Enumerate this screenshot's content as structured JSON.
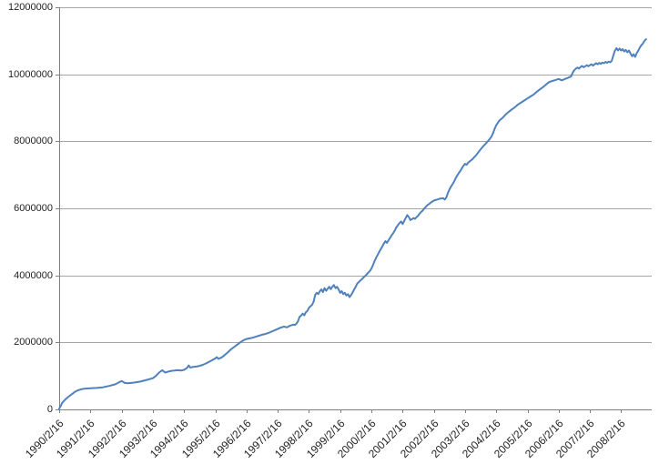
{
  "chart_data": {
    "type": "line",
    "title": "",
    "xlabel": "",
    "ylabel": "",
    "grid": "horizontal",
    "legend": "none",
    "colors": {
      "line": "#4F81BD",
      "gridline": "#A6A6A6",
      "axis": "#808080",
      "tick_label": "#1F1F1F",
      "background": "#FFFFFF"
    },
    "y_axis": {
      "min": 0,
      "max": 12000000,
      "tick_interval": 2000000,
      "tick_labels": [
        "0",
        "2000000",
        "4000000",
        "6000000",
        "8000000",
        "10000000",
        "12000000"
      ]
    },
    "x_axis": {
      "unit": "date",
      "tick_labels": [
        "1990/2/16",
        "1991/2/16",
        "1992/2/16",
        "1993/2/16",
        "1994/2/16",
        "1995/2/16",
        "1996/2/16",
        "1997/2/16",
        "1998/2/16",
        "1999/2/16",
        "2000/2/16",
        "2001/2/16",
        "2002/2/16",
        "2003/2/16",
        "2004/2/16",
        "2005/2/16",
        "2006/2/16",
        "2007/2/16",
        "2008/2/16"
      ],
      "years_shown": 19
    },
    "series": [
      {
        "x_unit": "years_since_1990_2_16",
        "points": [
          [
            0,
            20000
          ],
          [
            0.05,
            100000
          ],
          [
            0.1,
            200000
          ],
          [
            0.2,
            300000
          ],
          [
            0.3,
            380000
          ],
          [
            0.4,
            450000
          ],
          [
            0.5,
            520000
          ],
          [
            0.6,
            570000
          ],
          [
            0.7,
            600000
          ],
          [
            0.8,
            615000
          ],
          [
            0.9,
            625000
          ],
          [
            1.0,
            630000
          ],
          [
            1.2,
            640000
          ],
          [
            1.4,
            660000
          ],
          [
            1.6,
            700000
          ],
          [
            1.8,
            750000
          ],
          [
            1.9,
            800000
          ],
          [
            2.0,
            850000
          ],
          [
            2.1,
            790000
          ],
          [
            2.2,
            780000
          ],
          [
            2.4,
            800000
          ],
          [
            2.6,
            830000
          ],
          [
            2.8,
            880000
          ],
          [
            3.0,
            930000
          ],
          [
            3.1,
            1000000
          ],
          [
            3.2,
            1100000
          ],
          [
            3.3,
            1170000
          ],
          [
            3.4,
            1100000
          ],
          [
            3.5,
            1130000
          ],
          [
            3.6,
            1150000
          ],
          [
            3.7,
            1160000
          ],
          [
            3.8,
            1170000
          ],
          [
            3.9,
            1160000
          ],
          [
            4.0,
            1180000
          ],
          [
            4.1,
            1240000
          ],
          [
            4.15,
            1310000
          ],
          [
            4.2,
            1250000
          ],
          [
            4.3,
            1270000
          ],
          [
            4.4,
            1280000
          ],
          [
            4.5,
            1300000
          ],
          [
            4.6,
            1330000
          ],
          [
            4.7,
            1370000
          ],
          [
            4.8,
            1420000
          ],
          [
            4.9,
            1470000
          ],
          [
            5.0,
            1520000
          ],
          [
            5.05,
            1560000
          ],
          [
            5.1,
            1510000
          ],
          [
            5.2,
            1550000
          ],
          [
            5.3,
            1620000
          ],
          [
            5.4,
            1700000
          ],
          [
            5.5,
            1790000
          ],
          [
            5.6,
            1860000
          ],
          [
            5.7,
            1930000
          ],
          [
            5.8,
            2000000
          ],
          [
            5.9,
            2060000
          ],
          [
            6.0,
            2100000
          ],
          [
            6.1,
            2120000
          ],
          [
            6.2,
            2140000
          ],
          [
            6.3,
            2170000
          ],
          [
            6.4,
            2200000
          ],
          [
            6.5,
            2230000
          ],
          [
            6.6,
            2250000
          ],
          [
            6.7,
            2280000
          ],
          [
            6.8,
            2320000
          ],
          [
            6.9,
            2360000
          ],
          [
            7.0,
            2400000
          ],
          [
            7.1,
            2440000
          ],
          [
            7.2,
            2470000
          ],
          [
            7.3,
            2450000
          ],
          [
            7.4,
            2500000
          ],
          [
            7.5,
            2530000
          ],
          [
            7.55,
            2520000
          ],
          [
            7.6,
            2560000
          ],
          [
            7.65,
            2630000
          ],
          [
            7.7,
            2760000
          ],
          [
            7.75,
            2800000
          ],
          [
            7.8,
            2860000
          ],
          [
            7.85,
            2810000
          ],
          [
            7.9,
            2900000
          ],
          [
            7.95,
            2940000
          ],
          [
            8.0,
            3030000
          ],
          [
            8.05,
            3080000
          ],
          [
            8.1,
            3120000
          ],
          [
            8.15,
            3210000
          ],
          [
            8.2,
            3420000
          ],
          [
            8.25,
            3480000
          ],
          [
            8.3,
            3440000
          ],
          [
            8.35,
            3530000
          ],
          [
            8.4,
            3580000
          ],
          [
            8.45,
            3500000
          ],
          [
            8.5,
            3620000
          ],
          [
            8.55,
            3540000
          ],
          [
            8.6,
            3600000
          ],
          [
            8.65,
            3660000
          ],
          [
            8.7,
            3590000
          ],
          [
            8.75,
            3660000
          ],
          [
            8.8,
            3710000
          ],
          [
            8.85,
            3620000
          ],
          [
            8.9,
            3660000
          ],
          [
            8.95,
            3580000
          ],
          [
            9.0,
            3480000
          ],
          [
            9.05,
            3530000
          ],
          [
            9.1,
            3440000
          ],
          [
            9.15,
            3480000
          ],
          [
            9.2,
            3400000
          ],
          [
            9.25,
            3440000
          ],
          [
            9.3,
            3350000
          ],
          [
            9.35,
            3410000
          ],
          [
            9.4,
            3490000
          ],
          [
            9.45,
            3580000
          ],
          [
            9.5,
            3660000
          ],
          [
            9.55,
            3760000
          ],
          [
            9.6,
            3800000
          ],
          [
            9.65,
            3850000
          ],
          [
            9.7,
            3890000
          ],
          [
            9.75,
            3940000
          ],
          [
            9.8,
            3980000
          ],
          [
            9.85,
            4030000
          ],
          [
            9.9,
            4080000
          ],
          [
            9.95,
            4130000
          ],
          [
            10.0,
            4200000
          ],
          [
            10.05,
            4300000
          ],
          [
            10.1,
            4420000
          ],
          [
            10.15,
            4520000
          ],
          [
            10.2,
            4610000
          ],
          [
            10.25,
            4700000
          ],
          [
            10.3,
            4780000
          ],
          [
            10.35,
            4860000
          ],
          [
            10.4,
            4950000
          ],
          [
            10.45,
            5020000
          ],
          [
            10.5,
            4970000
          ],
          [
            10.55,
            5050000
          ],
          [
            10.6,
            5120000
          ],
          [
            10.65,
            5200000
          ],
          [
            10.7,
            5260000
          ],
          [
            10.75,
            5340000
          ],
          [
            10.8,
            5430000
          ],
          [
            10.85,
            5500000
          ],
          [
            10.9,
            5560000
          ],
          [
            10.95,
            5610000
          ],
          [
            11.0,
            5530000
          ],
          [
            11.05,
            5620000
          ],
          [
            11.1,
            5710000
          ],
          [
            11.15,
            5800000
          ],
          [
            11.2,
            5740000
          ],
          [
            11.25,
            5650000
          ],
          [
            11.3,
            5680000
          ],
          [
            11.35,
            5710000
          ],
          [
            11.4,
            5690000
          ],
          [
            11.45,
            5740000
          ],
          [
            11.5,
            5780000
          ],
          [
            11.55,
            5850000
          ],
          [
            11.6,
            5900000
          ],
          [
            11.65,
            5940000
          ],
          [
            11.7,
            6000000
          ],
          [
            11.75,
            6050000
          ],
          [
            11.8,
            6100000
          ],
          [
            11.85,
            6130000
          ],
          [
            11.9,
            6170000
          ],
          [
            11.95,
            6200000
          ],
          [
            12.0,
            6230000
          ],
          [
            12.1,
            6260000
          ],
          [
            12.2,
            6290000
          ],
          [
            12.3,
            6300000
          ],
          [
            12.35,
            6260000
          ],
          [
            12.4,
            6320000
          ],
          [
            12.45,
            6450000
          ],
          [
            12.5,
            6560000
          ],
          [
            12.55,
            6650000
          ],
          [
            12.6,
            6720000
          ],
          [
            12.65,
            6800000
          ],
          [
            12.7,
            6900000
          ],
          [
            12.75,
            6980000
          ],
          [
            12.8,
            7050000
          ],
          [
            12.85,
            7120000
          ],
          [
            12.9,
            7200000
          ],
          [
            12.95,
            7270000
          ],
          [
            13.0,
            7330000
          ],
          [
            13.05,
            7300000
          ],
          [
            13.1,
            7360000
          ],
          [
            13.15,
            7400000
          ],
          [
            13.2,
            7440000
          ],
          [
            13.25,
            7480000
          ],
          [
            13.3,
            7530000
          ],
          [
            13.35,
            7580000
          ],
          [
            13.4,
            7640000
          ],
          [
            13.45,
            7700000
          ],
          [
            13.5,
            7760000
          ],
          [
            13.55,
            7820000
          ],
          [
            13.6,
            7870000
          ],
          [
            13.65,
            7920000
          ],
          [
            13.7,
            7970000
          ],
          [
            13.75,
            8020000
          ],
          [
            13.8,
            8080000
          ],
          [
            13.85,
            8150000
          ],
          [
            13.9,
            8250000
          ],
          [
            13.95,
            8380000
          ],
          [
            14.0,
            8480000
          ],
          [
            14.05,
            8550000
          ],
          [
            14.1,
            8620000
          ],
          [
            14.2,
            8700000
          ],
          [
            14.3,
            8800000
          ],
          [
            14.4,
            8880000
          ],
          [
            14.5,
            8950000
          ],
          [
            14.6,
            9020000
          ],
          [
            14.7,
            9100000
          ],
          [
            14.8,
            9160000
          ],
          [
            14.9,
            9220000
          ],
          [
            15.0,
            9280000
          ],
          [
            15.1,
            9340000
          ],
          [
            15.2,
            9400000
          ],
          [
            15.3,
            9480000
          ],
          [
            15.4,
            9550000
          ],
          [
            15.5,
            9620000
          ],
          [
            15.6,
            9700000
          ],
          [
            15.7,
            9770000
          ],
          [
            15.8,
            9800000
          ],
          [
            15.9,
            9830000
          ],
          [
            16.0,
            9860000
          ],
          [
            16.1,
            9820000
          ],
          [
            16.2,
            9860000
          ],
          [
            16.3,
            9900000
          ],
          [
            16.4,
            9940000
          ],
          [
            16.45,
            10050000
          ],
          [
            16.5,
            10120000
          ],
          [
            16.55,
            10170000
          ],
          [
            16.6,
            10200000
          ],
          [
            16.65,
            10170000
          ],
          [
            16.7,
            10220000
          ],
          [
            16.75,
            10250000
          ],
          [
            16.8,
            10210000
          ],
          [
            16.85,
            10240000
          ],
          [
            16.9,
            10270000
          ],
          [
            16.95,
            10240000
          ],
          [
            17.0,
            10270000
          ],
          [
            17.05,
            10300000
          ],
          [
            17.1,
            10260000
          ],
          [
            17.15,
            10300000
          ],
          [
            17.2,
            10330000
          ],
          [
            17.25,
            10300000
          ],
          [
            17.3,
            10340000
          ],
          [
            17.35,
            10310000
          ],
          [
            17.4,
            10350000
          ],
          [
            17.45,
            10330000
          ],
          [
            17.5,
            10370000
          ],
          [
            17.55,
            10340000
          ],
          [
            17.6,
            10380000
          ],
          [
            17.65,
            10360000
          ],
          [
            17.7,
            10400000
          ],
          [
            17.75,
            10560000
          ],
          [
            17.8,
            10700000
          ],
          [
            17.85,
            10780000
          ],
          [
            17.9,
            10710000
          ],
          [
            17.95,
            10770000
          ],
          [
            18.0,
            10710000
          ],
          [
            18.05,
            10750000
          ],
          [
            18.1,
            10680000
          ],
          [
            18.15,
            10730000
          ],
          [
            18.2,
            10660000
          ],
          [
            18.25,
            10710000
          ],
          [
            18.3,
            10620000
          ],
          [
            18.35,
            10540000
          ],
          [
            18.4,
            10600000
          ],
          [
            18.45,
            10520000
          ],
          [
            18.5,
            10630000
          ],
          [
            18.55,
            10710000
          ],
          [
            18.6,
            10800000
          ],
          [
            18.65,
            10870000
          ],
          [
            18.7,
            10920000
          ],
          [
            18.75,
            11000000
          ],
          [
            18.8,
            11050000
          ]
        ]
      }
    ]
  }
}
